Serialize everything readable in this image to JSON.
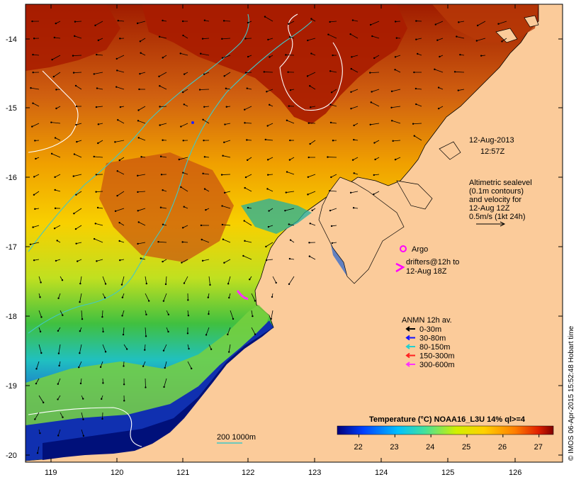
{
  "map": {
    "date_line1": "12-Aug-2013",
    "date_line2": "12:57Z",
    "altimetry_lines": [
      "Altimetric sealevel",
      "(0.1m contours)",
      "and velocity for",
      "12-Aug 12Z",
      "0.5m/s (1kt 24h)"
    ],
    "argo_label": "Argo",
    "drifters_lines": [
      "drifters@12h to",
      "12-Aug 18Z"
    ],
    "anmn_title": "ANMN 12h av.",
    "anmn_items": [
      {
        "label": "0-30m",
        "color": "#000000"
      },
      {
        "label": "30-80m",
        "color": "#1010ff"
      },
      {
        "label": "80-150m",
        "color": "#20d0d0"
      },
      {
        "label": "150-300m",
        "color": "#ff2020"
      },
      {
        "label": "300-600m",
        "color": "#ff30ff"
      }
    ],
    "colorbar_title": "Temperature (°C) NOAA16_L3U 14% ql>=4",
    "colorbar_ticks": [
      "22",
      "23",
      "24",
      "25",
      "26",
      "27"
    ],
    "colorbar_range": [
      21.4,
      27.4
    ],
    "scale_label": "200  1000m",
    "credit": "© IMOS 06-Apr-2015 15:52:48 Hobart time",
    "lat_labels": [
      "-14",
      "-15",
      "-16",
      "-17",
      "-18",
      "-19",
      "-20"
    ],
    "lon_labels": [
      "119",
      "120",
      "121",
      "122",
      "123",
      "124",
      "125",
      "126"
    ],
    "colors": {
      "land": "#fbcb9a",
      "argo": "#ff00ff",
      "contour_white": "#ffffff",
      "contour_cyan": "#40c8c8"
    }
  }
}
